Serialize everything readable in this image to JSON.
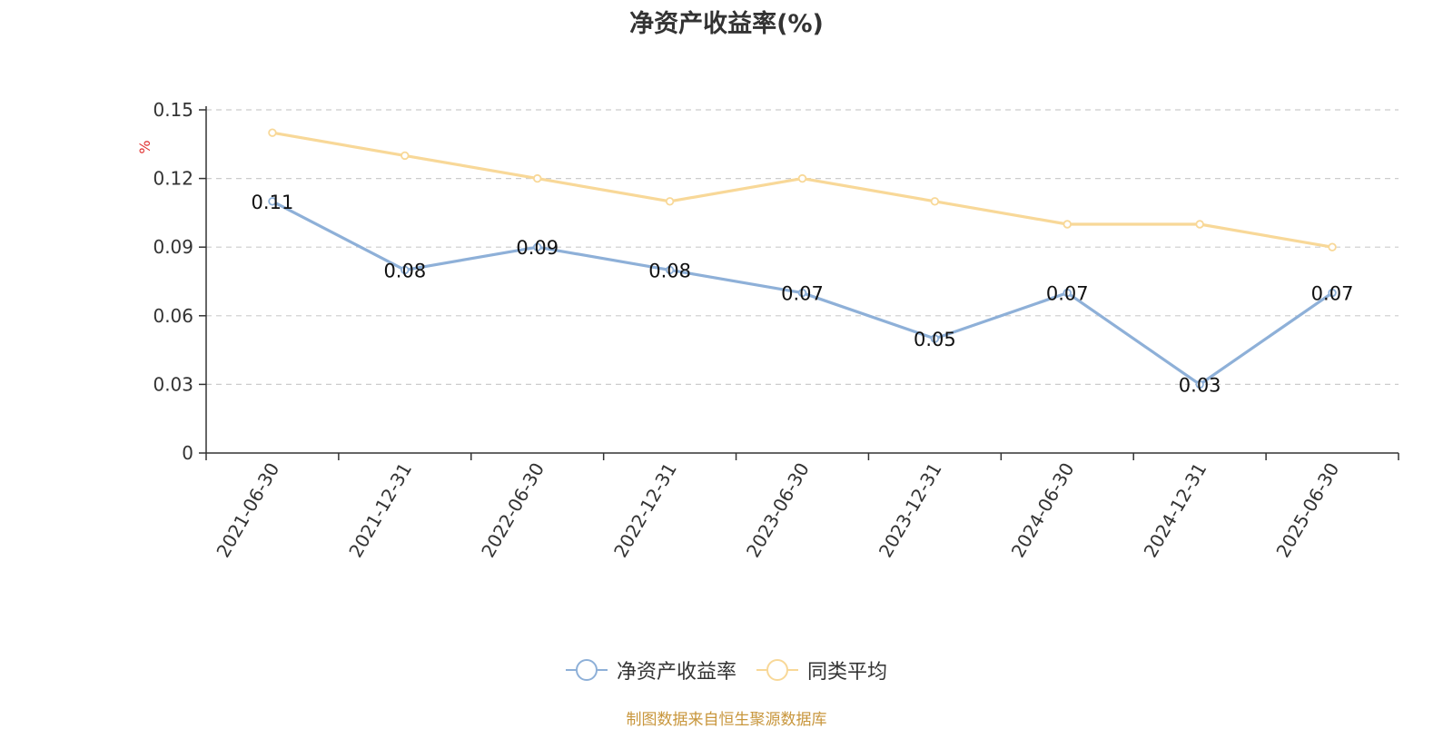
{
  "title": "净资产收益率(%)",
  "source": "制图数据来自恒生聚源数据库",
  "chart_data": {
    "type": "line",
    "title": "净资产收益率(%)",
    "ylabel": "%",
    "ylim": [
      0,
      0.15
    ],
    "yticks": [
      0,
      0.03,
      0.06,
      0.09,
      0.12,
      0.15
    ],
    "ytick_labels": [
      "0",
      "0.03",
      "0.06",
      "0.09",
      "0.12",
      "0.15"
    ],
    "categories": [
      "2021-06-30",
      "2021-12-31",
      "2022-06-30",
      "2022-12-31",
      "2023-06-30",
      "2023-12-31",
      "2024-06-30",
      "2024-12-31",
      "2025-06-30"
    ],
    "grid": true,
    "legend_position": "bottom-center",
    "series": [
      {
        "name": "净资产收益率",
        "color": "#8eb0d8",
        "values": [
          0.11,
          0.08,
          0.09,
          0.08,
          0.07,
          0.05,
          0.07,
          0.03,
          0.07
        ],
        "data_labels": [
          "0.11",
          "0.08",
          "0.09",
          "0.08",
          "0.07",
          "0.05",
          "0.07",
          "0.03",
          "0.07"
        ]
      },
      {
        "name": "同类平均",
        "color": "#f8d898",
        "values": [
          0.14,
          0.13,
          0.12,
          0.11,
          0.12,
          0.11,
          0.1,
          0.1,
          0.09
        ]
      }
    ]
  },
  "colors": {
    "unit_label": "#e03030",
    "axis": "#333333",
    "grid": "#cccccc",
    "source": "#c8963c"
  }
}
